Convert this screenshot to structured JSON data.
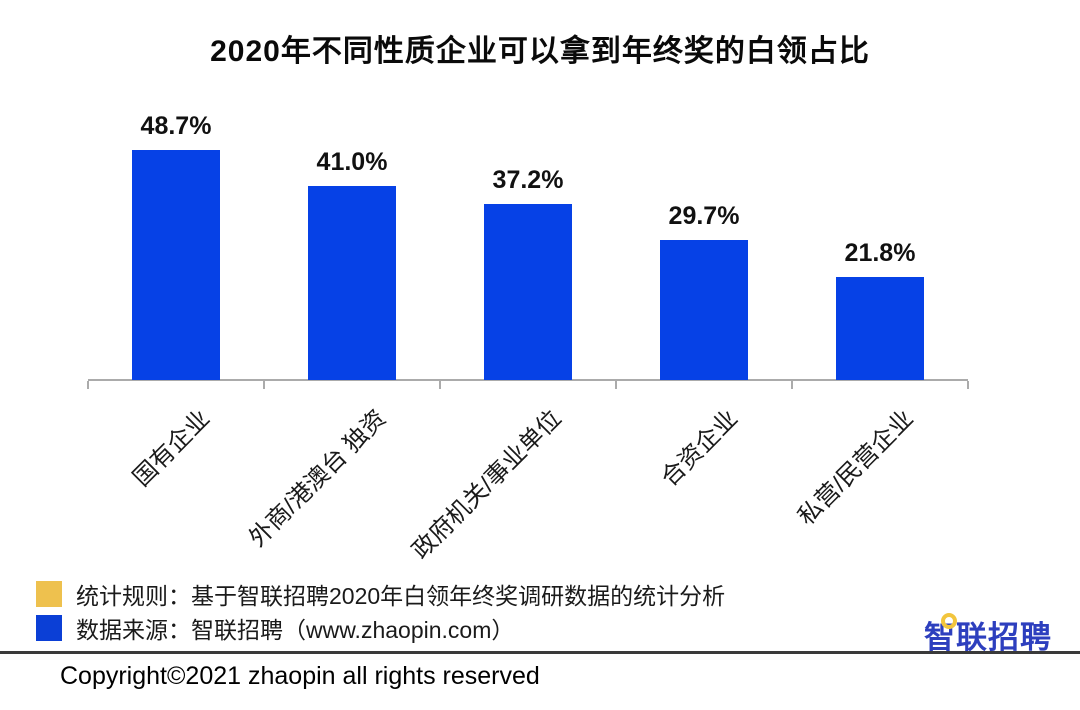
{
  "title": "2020年不同性质企业可以拿到年终奖的白领占比",
  "chart_data": {
    "type": "bar",
    "title": "2020年不同性质企业可以拿到年终奖的白领占比",
    "categories": [
      "国有企业",
      "外商/港澳台 独资",
      "政府机关/事业单位",
      "合资企业",
      "私营/民营企业"
    ],
    "values": [
      48.7,
      41.0,
      37.2,
      29.7,
      21.8
    ],
    "value_labels": [
      "48.7%",
      "41.0%",
      "37.2%",
      "29.7%",
      "21.8%"
    ],
    "xlabel": "",
    "ylabel": "",
    "ylim": [
      0,
      55
    ],
    "grid": false,
    "legend_position": "none",
    "bar_color": "#0641e6",
    "axis_color": "#ababab",
    "category_label_rotation_deg": 45
  },
  "legend": {
    "items": [
      {
        "swatch_color": "#eec14e",
        "label": "统计规则：基于智联招聘2020年白领年终奖调研数据的统计分析"
      },
      {
        "swatch_color": "#0b3fd6",
        "label": "数据来源：智联招聘（www.zhaopin.com）"
      }
    ]
  },
  "logo": {
    "text": "智联招聘",
    "color": "#2d3fbe",
    "dot_color": "#f2c53d"
  },
  "footer": {
    "copyright": "Copyright©2021 zhaopin all rights reserved"
  }
}
